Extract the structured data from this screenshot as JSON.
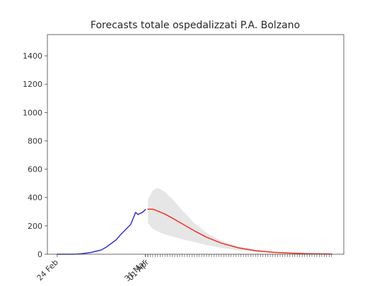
{
  "chart_data": {
    "type": "line",
    "title": "Forecasts totale ospedalizzati P.A. Bolzano",
    "xlabel": "",
    "ylabel": "",
    "ylim": [
      0,
      1550
    ],
    "yticks": [
      0,
      200,
      400,
      600,
      800,
      1000,
      1200,
      1400
    ],
    "x_axis": {
      "type": "date",
      "start": "2020-02-20",
      "end": "2020-06-20"
    },
    "xtick_labels": [
      {
        "label": "24 Feb",
        "date": "2020-02-24"
      },
      {
        "label": "31 Mar",
        "date": "2020-03-31"
      },
      {
        "label": "01 Apr",
        "date": "2020-04-01"
      }
    ],
    "grid": false,
    "series": [
      {
        "kind": "observed",
        "color": "#3333cc",
        "points": [
          [
            "2020-02-24",
            0
          ],
          [
            "2020-02-26",
            0
          ],
          [
            "2020-02-28",
            0
          ],
          [
            "2020-03-01",
            0
          ],
          [
            "2020-03-03",
            1
          ],
          [
            "2020-03-05",
            4
          ],
          [
            "2020-03-07",
            8
          ],
          [
            "2020-03-09",
            13
          ],
          [
            "2020-03-11",
            22
          ],
          [
            "2020-03-13",
            30
          ],
          [
            "2020-03-15",
            50
          ],
          [
            "2020-03-17",
            75
          ],
          [
            "2020-03-19",
            100
          ],
          [
            "2020-03-21",
            140
          ],
          [
            "2020-03-23",
            175
          ],
          [
            "2020-03-25",
            210
          ],
          [
            "2020-03-27",
            295
          ],
          [
            "2020-03-28",
            280
          ],
          [
            "2020-03-30",
            298
          ],
          [
            "2020-03-31",
            315
          ]
        ]
      },
      {
        "kind": "forecast",
        "color": "#ee3322",
        "points": [
          [
            "2020-04-01",
            318
          ],
          [
            "2020-04-03",
            318
          ],
          [
            "2020-04-05",
            305
          ],
          [
            "2020-04-08",
            283
          ],
          [
            "2020-04-11",
            255
          ],
          [
            "2020-04-15",
            215
          ],
          [
            "2020-04-20",
            165
          ],
          [
            "2020-04-25",
            120
          ],
          [
            "2020-05-01",
            78
          ],
          [
            "2020-05-08",
            45
          ],
          [
            "2020-05-15",
            25
          ],
          [
            "2020-05-22",
            14
          ],
          [
            "2020-05-29",
            8
          ],
          [
            "2020-06-05",
            4
          ],
          [
            "2020-06-15",
            2
          ]
        ]
      }
    ],
    "forecast_band": {
      "color": "#e6e6e6",
      "points": [
        [
          "2020-04-01",
          220,
          385
        ],
        [
          "2020-04-03",
          180,
          450
        ],
        [
          "2020-04-05",
          160,
          470
        ],
        [
          "2020-04-08",
          140,
          440
        ],
        [
          "2020-04-11",
          125,
          390
        ],
        [
          "2020-04-15",
          105,
          310
        ],
        [
          "2020-04-20",
          85,
          220
        ],
        [
          "2020-04-25",
          65,
          150
        ],
        [
          "2020-05-01",
          45,
          95
        ],
        [
          "2020-05-08",
          28,
          55
        ],
        [
          "2020-05-15",
          16,
          32
        ],
        [
          "2020-05-22",
          9,
          18
        ],
        [
          "2020-05-29",
          5,
          10
        ],
        [
          "2020-06-05",
          2,
          5
        ],
        [
          "2020-06-15",
          1,
          3
        ]
      ]
    },
    "xtick_marks_daily_from": "2020-03-31",
    "xtick_marks_daily_to": "2020-06-15"
  }
}
